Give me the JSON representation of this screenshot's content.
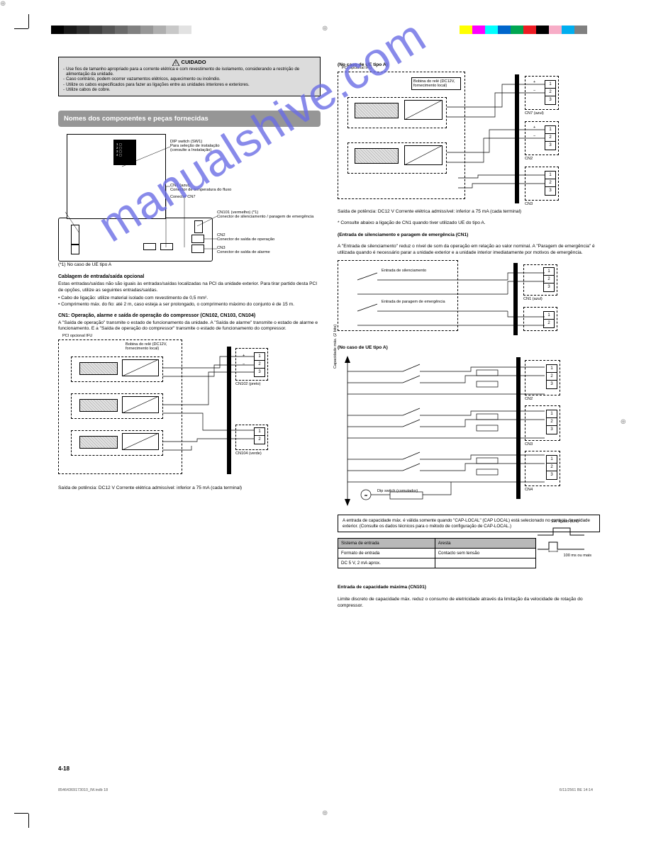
{
  "colorbars": {
    "left": [
      "#000000",
      "#191919",
      "#2d2d2d",
      "#404040",
      "#555555",
      "#6a6a6a",
      "#808080",
      "#979797",
      "#afafaf",
      "#c8c8c8",
      "#e2e2e2",
      "#ffffff"
    ],
    "right": [
      "#ffff00",
      "#ff00ff",
      "#00ffff",
      "#0066cc",
      "#00a651",
      "#ed1c24",
      "#000000",
      "#f7adc7",
      "#00aeef",
      "#808080",
      "#ffffff"
    ]
  },
  "watermark": "manualshive.com",
  "caution": {
    "title": "CUIDADO",
    "lines": [
      "Use fios de tamanho apropriado para a corrente elétrica e com revestimento de isolamento, considerando a restrição de alimentação da unidade.",
      "Caso contrário, podem ocorrer vazamentos elétricos, aquecimento ou incêndio.",
      "Utilize os cabos especificados para fazer as ligações entre as unidades interiores e exteriores.",
      "Utilize cabos de cobre."
    ]
  },
  "section_header": "Nomes dos componentes e peças fornecidas",
  "left_diag": {
    "labels": {
      "dip": "DIP switch (SW1)\\nPara seleção de instalação\\n(consulte a Instalação)",
      "dip_bits": [
        "1",
        "2",
        "3",
        "4"
      ],
      "cn1": "CN1 (azul)\\nConector de temperatura do fluxo",
      "sw1": "DIP switch (SW1)",
      "cn101": "CN101 (vermelho) (*1)\\nConector de silenciamento / paragem de emergência",
      "cn102": "CN102 (preto) (*1)\\nConector de capacidade máx. (opcional, Longa)",
      "cn7": "Conector CN7",
      "cn2": "CN2\\nConector de saída de operação",
      "cn3": "CN3\\nConector de saída de alarme",
      "cn4": "CN104 (verde)\\nConector de saída de operação do compressor"
    },
    "note1": "(*1) No caso de UE tipo A"
  },
  "body_left": {
    "subhead1": "Cablagem de entrada/saída opcional",
    "p1": "Estas entradas/saídas não são iguais às entradas/saídas localizadas na PCI da unidade exterior. Para tirar partido desta PCI de opções, utilize as seguintes entradas/saídas.",
    "bullets1": [
      "Cabo de ligação: utilize material isolado com revestimento de 0,5 mm².",
      "Comprimento máx. do fio: até 2 m, caso esteja a ser prolongado, o comprimento máximo do conjunto é de 15 m."
    ],
    "subhead2": "CN1: Operação, alarme e saída de operação do compressor (CN102, CN103, CN104)",
    "p2": "A \"Saída de operação\" transmite o estado de funcionamento da unidade. A \"Saída de alarme\" transmite o estado de alarme e funcionamento. E a \"Saída de operação do compressor\" transmite o estado de funcionamento do compressor."
  },
  "wiring1": {
    "title": "PCI opcional IFU",
    "relay": "Bobina do relé (DC12V, fornecimento local)",
    "blocks": [
      "CN102 (preto)",
      "CN103 (branco)",
      "CN104 (verde)"
    ],
    "wire_labels": [
      "+",
      "−",
      "+",
      "−"
    ],
    "term": "1 2 3  1 2",
    "spec": "Saída de potência: DC12 V  Corrente elétrica admissível: inferior a 75 mA (cada terminal)"
  },
  "right": {
    "title_a": "(No caso de UE tipo A)",
    "wiring2": {
      "pcb": "PCI opcional IFU",
      "relay": "Bobina do relé (DC12V, fornecimento local)",
      "blocks": [
        "CN7 (azul)",
        "CN2",
        "CN3"
      ],
      "labels": [
        "+",
        "−",
        "+",
        "−"
      ]
    },
    "spec_a": "Saída de potência: DC12 V  Corrente elétrica admissível: inferior a 75 mA (cada terminal)",
    "note_a": "* Consulte abaixo a ligação de CN1 quando tiver utilizado UE do tipo A.",
    "title_b1": "(Entrada de silenciamento e paragem de emergência (CN1)",
    "p_b1": "A \"Entrada de silenciamento\" reduz o nível de som da operação em relação ao valor nominal. A \"Paragem de emergência\" é utilizada quando é necessário parar a unidade exterior e a unidade interior imediatamente por motivos de emergência.",
    "wiring3": {
      "labels": [
        "Entrada de silenciamento",
        "Entrada de paragem de emergência"
      ],
      "block": "CN1 (azul)",
      "note": "Conector (branco) (XAP-03V-1-M)"
    },
    "title_b2": "(No caso de UE tipo A)",
    "wiring4": {
      "block": "CN101 (vermelho)",
      "dipnote": "Dip switch (comutador)",
      "arrows": [
        "Capacidade máx. (2 bits)",
        "Capacidade mín. (2 bits)"
      ],
      "blocks": [
        "CN2",
        "CN3",
        "CN4"
      ]
    },
    "note_box": "A entrada de capacidade máx. é válida somente quando \"CAP-LOCAL\" (CAP LOCAL) está selecionado no controlo da unidade exterior. (Consulte os dados técnicos para o método de configuração de CAP-LOCAL.)",
    "sig_label1": "SW ligado (ON)",
    "sig_label2": "100 ms ou mais",
    "table": {
      "cols": [
        "Sistema de entrada",
        "Aresta"
      ],
      "rows": [
        [
          "Formato de entrada",
          "Contacto sem tensão"
        ],
        [
          "DC 5 V, 2 mA aprox.",
          ""
        ]
      ]
    },
    "extra_head": "Entrada de capacidade máxima (CN101)",
    "extra_p": "Limite discreto de capacidade máx. reduz o consumo de eletricidade através da limitação da velocidade de rotação do compressor."
  },
  "page_num": "4-18",
  "footer_l": "85464369173010_IM.indb   18",
  "footer_r": "6/11/2561 BE   14:14"
}
